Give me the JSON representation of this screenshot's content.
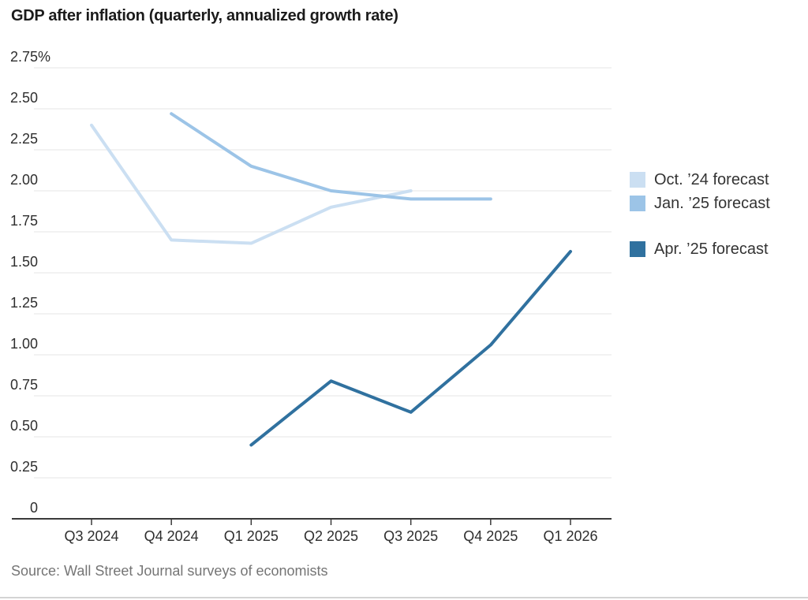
{
  "chart": {
    "title": "GDP after inflation (quarterly, annualized growth rate)",
    "source": "Source: Wall Street Journal surveys of economists"
  },
  "colors": {
    "gridline": "#e9e9e9",
    "axis": "#3a3a3a",
    "title_text": "#1b1b1b",
    "axis_label_text": "#2e2e2e",
    "legend_text": "#333333",
    "source_text": "#757575",
    "bottom_rule": "#d4d4d4",
    "background": "#ffffff"
  },
  "chart_data": {
    "type": "line",
    "title": "GDP after inflation (quarterly, annualized growth rate)",
    "xlabel": "",
    "ylabel": "",
    "categories": [
      "Q3 2024",
      "Q4 2024",
      "Q1 2025",
      "Q2 2025",
      "Q3 2025",
      "Q4 2025",
      "Q1 2026"
    ],
    "series": [
      {
        "name": "Oct. ’24 forecast",
        "color": "#cbdff2",
        "start_index": 0,
        "values": [
          2.4,
          1.7,
          1.68,
          1.9,
          2.0
        ]
      },
      {
        "name": "Jan. ’25 forecast",
        "color": "#9cc4e7",
        "start_index": 1,
        "values": [
          2.47,
          2.15,
          2.0,
          1.95,
          1.95
        ]
      },
      {
        "name": "Apr. ’25 forecast",
        "color": "#30719f",
        "start_index": 2,
        "values": [
          0.45,
          0.84,
          0.65,
          1.06,
          1.63
        ]
      }
    ],
    "ylim": [
      0,
      2.75
    ],
    "y_ticks": [
      2.75,
      2.5,
      2.25,
      2.0,
      1.75,
      1.5,
      1.25,
      1.0,
      0.75,
      0.5,
      0.25,
      0
    ],
    "y_tick_labels": [
      "2.75%",
      "2.50",
      "2.25",
      "2.00",
      "1.75",
      "1.50",
      "1.25",
      "1.00",
      "0.75",
      "0.50",
      "0.25",
      "0"
    ],
    "grid": "horizontal",
    "legend_position": "right",
    "legend_gap_before_index": 2
  }
}
